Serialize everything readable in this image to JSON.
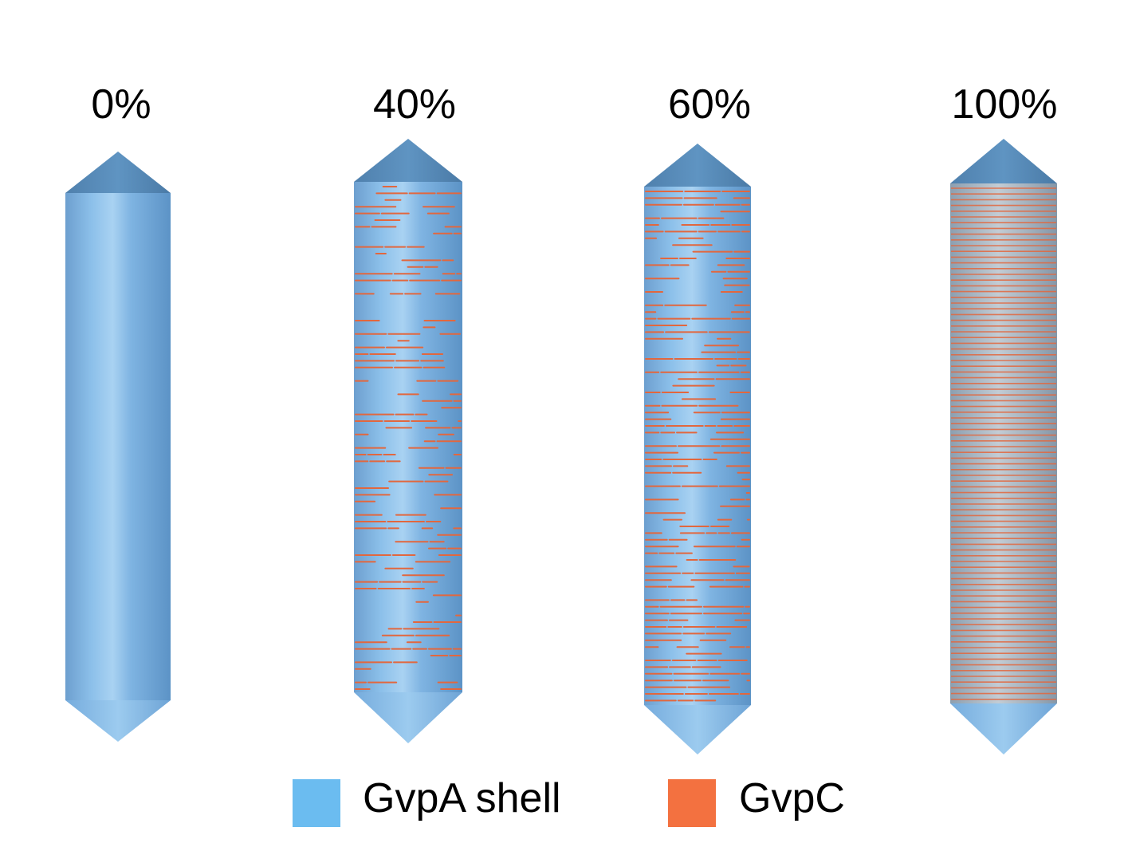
{
  "panels": [
    {
      "label": "0%",
      "gvpc_fraction": 0.0
    },
    {
      "label": "40%",
      "gvpc_fraction": 0.4
    },
    {
      "label": "60%",
      "gvpc_fraction": 0.6
    },
    {
      "label": "100%",
      "gvpc_fraction": 1.0
    }
  ],
  "legend": [
    {
      "label": "GvpA shell",
      "color": "#6bbcf0"
    },
    {
      "label": "GvpC",
      "color": "#f37140"
    }
  ],
  "colors": {
    "shell_light": "#8fc3ea",
    "shell_mid": "#6fa8d8",
    "shell_dark": "#4f87b8",
    "gvpc": "#e2673e"
  }
}
